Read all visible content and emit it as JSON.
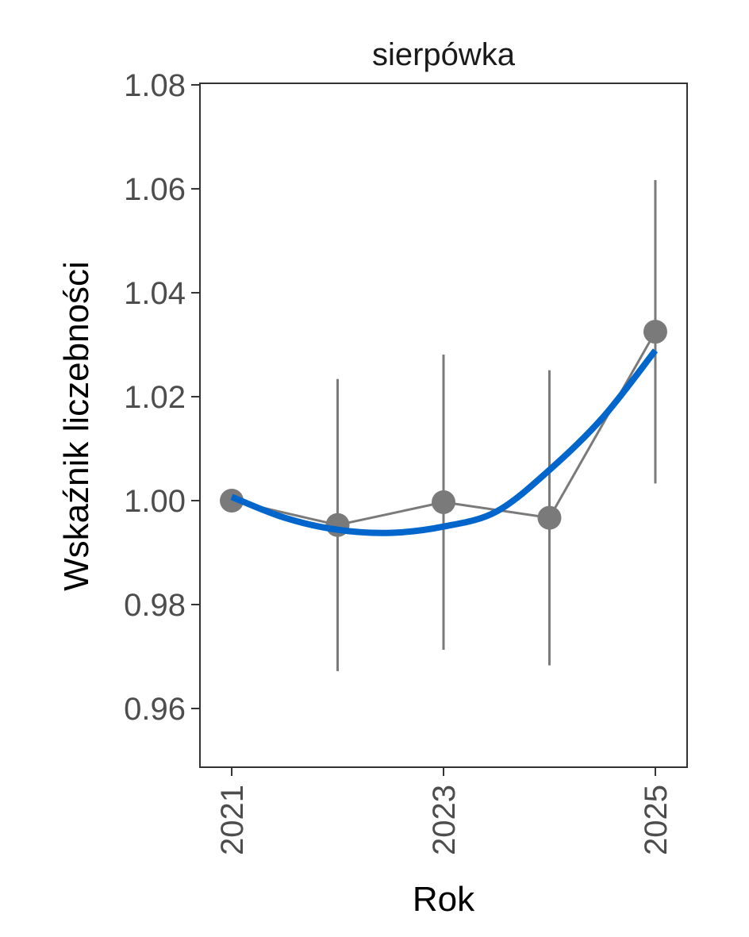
{
  "chart_data": {
    "type": "line",
    "title": "sierpówka",
    "xlabel": "Rok",
    "ylabel": "Wskaźnik liczebności",
    "x": [
      2021,
      2022,
      2023,
      2024,
      2025
    ],
    "series": [
      {
        "values": [
          1.0,
          0.9953,
          0.9997,
          0.9967,
          1.0325
        ],
        "lower": [
          1.0,
          0.9672,
          0.9713,
          0.9683,
          1.0033
        ],
        "upper": [
          1.0,
          1.0234,
          1.0281,
          1.0251,
          1.0617
        ],
        "color": "#7a7a7a"
      }
    ],
    "trend": {
      "x": [
        2021,
        2021.5,
        2022,
        2022.5,
        2023,
        2023.5,
        2024,
        2024.5,
        2025
      ],
      "values": [
        1.0007,
        0.9967,
        0.9944,
        0.9938,
        0.995,
        0.9979,
        1.0059,
        1.0159,
        1.0289
      ],
      "color": "#0066cc"
    },
    "xlim": [
      2020.7,
      2025.3
    ],
    "ylim": [
      0.9487,
      1.0803
    ],
    "yticks": [
      "0.96",
      "0.98",
      "1.00",
      "1.02",
      "1.04",
      "1.06",
      "1.08"
    ],
    "xticks": [
      "2021",
      "2023",
      "2025"
    ],
    "grid": false,
    "legend": "none"
  }
}
